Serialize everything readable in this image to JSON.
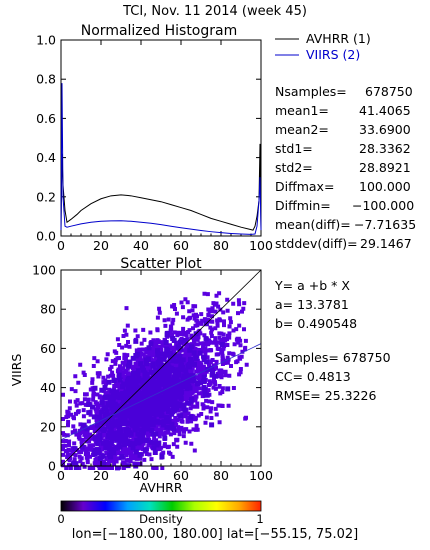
{
  "header": {
    "title": "TCI,  Nov. 11 2014 (week 45)"
  },
  "chart_data": [
    {
      "type": "line",
      "title": "Normalized Histogram",
      "xlim": [
        0,
        100
      ],
      "ylim": [
        0,
        1.0
      ],
      "x_ticks": [
        "0",
        "20",
        "40",
        "60",
        "80",
        "100"
      ],
      "y_ticks": [
        "0.0",
        "0.2",
        "0.4",
        "0.6",
        "0.8",
        "1.0"
      ],
      "series": [
        {
          "name": "AVHRR (1)",
          "color": "#000000",
          "x": [
            0,
            0.5,
            1,
            2,
            3,
            5,
            8,
            10,
            15,
            20,
            25,
            30,
            35,
            40,
            45,
            50,
            55,
            60,
            65,
            70,
            75,
            80,
            85,
            90,
            94,
            96,
            97,
            98,
            99,
            99.5,
            100
          ],
          "y": [
            0.02,
            0.42,
            0.26,
            0.13,
            0.07,
            0.085,
            0.11,
            0.13,
            0.165,
            0.19,
            0.205,
            0.21,
            0.205,
            0.195,
            0.185,
            0.175,
            0.16,
            0.145,
            0.13,
            0.11,
            0.09,
            0.075,
            0.06,
            0.045,
            0.035,
            0.03,
            0.05,
            0.1,
            0.18,
            0.47,
            0.04
          ]
        },
        {
          "name": "VIIRS (2)",
          "color": "#0000cc",
          "x": [
            0,
            0.5,
            1,
            2,
            3,
            5,
            10,
            15,
            20,
            25,
            30,
            35,
            40,
            45,
            50,
            55,
            60,
            65,
            70,
            75,
            80,
            85,
            90,
            95,
            97,
            98,
            99,
            99.5,
            100
          ],
          "y": [
            0.03,
            0.78,
            0.2,
            0.05,
            0.045,
            0.05,
            0.062,
            0.07,
            0.075,
            0.077,
            0.078,
            0.075,
            0.07,
            0.065,
            0.058,
            0.05,
            0.042,
            0.035,
            0.028,
            0.022,
            0.017,
            0.013,
            0.01,
            0.008,
            0.01,
            0.05,
            0.18,
            0.3,
            0.03
          ]
        }
      ]
    },
    {
      "type": "scatter",
      "title": "Scatter Plot",
      "xlabel": "AVHRR",
      "ylabel": "VIIRS",
      "xlim": [
        0,
        100
      ],
      "ylim": [
        0,
        100
      ],
      "x_ticks": [
        "0",
        "20",
        "40",
        "60",
        "80",
        "100"
      ],
      "y_ticks": [
        "0",
        "20",
        "40",
        "60",
        "80",
        "100"
      ],
      "regression": {
        "a": 13.3781,
        "b": 0.490548
      },
      "density_cloud": {
        "mean_x": 41.4065,
        "mean_y": 33.69,
        "std_x": 28.3362,
        "std_y": 28.8921,
        "cc": 0.4813,
        "point_color": "#5a00e0"
      },
      "colorbar": {
        "label": "Density",
        "min": "0",
        "max": "1",
        "colors": [
          "#000000",
          "#6600cc",
          "#0000ff",
          "#00a0ff",
          "#00e0c0",
          "#00cc00",
          "#aaff00",
          "#ffff00",
          "#ffaa00",
          "#ff2200"
        ]
      }
    }
  ],
  "hist_stats": {
    "legend": [
      "AVHRR (1)",
      "VIIRS (2)"
    ],
    "rows": [
      {
        "key": "Nsamples=",
        "val": "678750"
      },
      {
        "key": "mean1=",
        "val": "41.4065"
      },
      {
        "key": "mean2=",
        "val": "33.6900"
      },
      {
        "key": "std1=",
        "val": "28.3362"
      },
      {
        "key": "std2=",
        "val": "28.8921"
      },
      {
        "key": "Diffmax=",
        "val": "100.000"
      },
      {
        "key": "Diffmin=",
        "val": "−100.000"
      },
      {
        "key": "mean(diff)=",
        "val": "−7.71635"
      },
      {
        "key": "stddev(diff)=",
        "val": "29.1467"
      }
    ]
  },
  "scatter_stats": {
    "equation": "Y= a +b * X",
    "a": "a= 13.3781",
    "b": "b= 0.490548",
    "samples": "Samples= 678750",
    "cc": "CC=  0.4813",
    "rmse": "RMSE= 25.3226"
  },
  "footer": {
    "lon": "lon=[−180.00, 180.00]",
    "lat": "lat=[−55.15, 75.02]"
  }
}
